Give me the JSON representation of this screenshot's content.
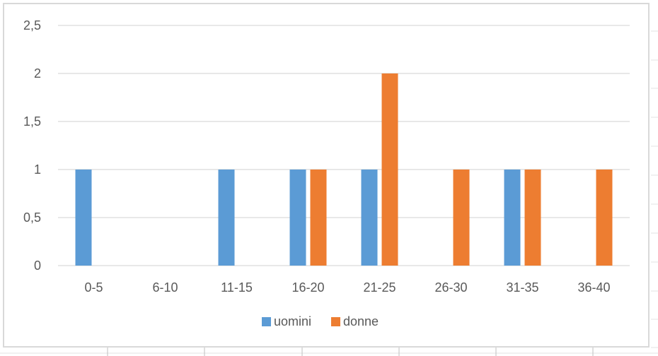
{
  "chart_data": {
    "type": "bar",
    "categories": [
      "0-5",
      "6-10",
      "11-15",
      "16-20",
      "21-25",
      "26-30",
      "31-35",
      "36-40"
    ],
    "series": [
      {
        "name": "uomini",
        "color": "#5b9bd5",
        "values": [
          1,
          0,
          1,
          1,
          1,
          0,
          1,
          0
        ]
      },
      {
        "name": "donne",
        "color": "#ed7d31",
        "values": [
          0,
          0,
          0,
          1,
          2,
          1,
          1,
          1
        ]
      }
    ],
    "y_ticks": [
      "0",
      "0,5",
      "1",
      "1,5",
      "2",
      "2,5"
    ],
    "ylim": [
      0,
      2.5
    ],
    "grid": true,
    "legend_position": "bottom"
  }
}
